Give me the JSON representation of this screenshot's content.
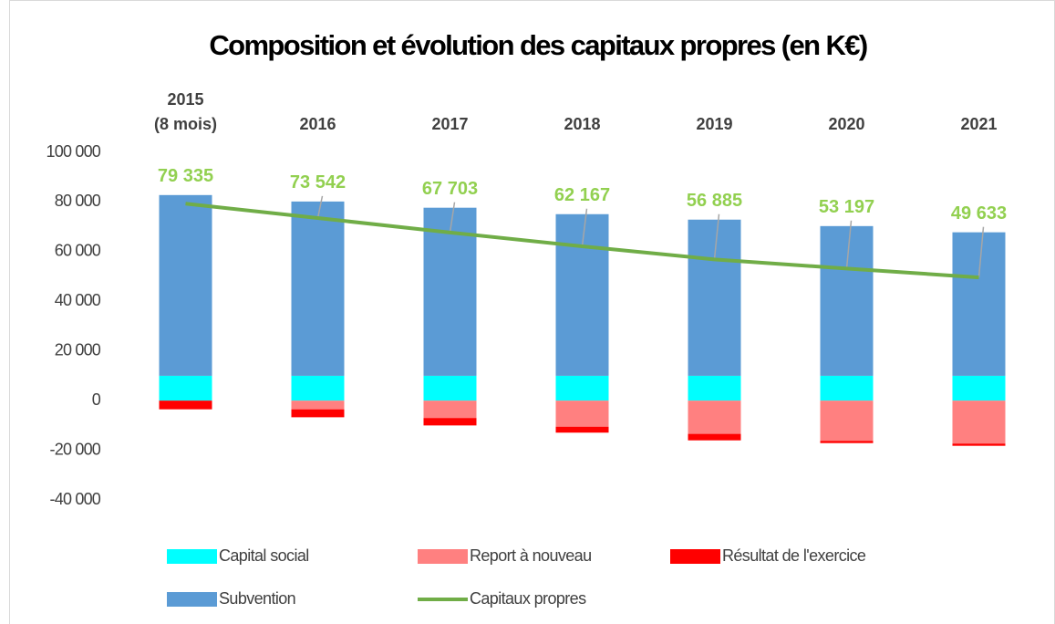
{
  "chart_data": {
    "type": "bar",
    "stacked": true,
    "title": "Composition et évolution des capitaux propres (en K€)",
    "categories": [
      "2015\n(8 mois)",
      "2016",
      "2017",
      "2018",
      "2019",
      "2020",
      "2021"
    ],
    "series": [
      {
        "name": "Capital social",
        "color": "#00ffff",
        "values": [
          10000,
          10000,
          10000,
          10000,
          10000,
          10000,
          10000
        ]
      },
      {
        "name": "Report à nouveau",
        "color": "#ff8080",
        "values": [
          0,
          -3500,
          -7000,
          -10500,
          -13400,
          -16200,
          -17300
        ]
      },
      {
        "name": "Résultat de l'exercice",
        "color": "#ff0000",
        "values": [
          -3500,
          -3200,
          -3000,
          -2400,
          -2600,
          -900,
          -900
        ]
      },
      {
        "name": "Subvention",
        "color": "#5b9bd5",
        "values": [
          72800,
          70200,
          67700,
          65100,
          62900,
          60300,
          57800
        ]
      },
      {
        "name": "Capitaux propres",
        "color": "#70ad47",
        "type": "line",
        "values": [
          79335,
          73542,
          67703,
          62167,
          56885,
          53197,
          49633
        ],
        "value_labels": [
          "79 335",
          "73 542",
          "67 703",
          "62 167",
          "56 885",
          "53 197",
          "49 633"
        ]
      }
    ],
    "ylim": [
      -40000,
      100000
    ],
    "yticks": [
      {
        "value": -40000,
        "label": "-40 000"
      },
      {
        "value": -20000,
        "label": "-20 000"
      },
      0,
      {
        "value": 20000,
        "label": "20 000"
      },
      {
        "value": 40000,
        "label": "40 000"
      },
      {
        "value": 60000,
        "label": "60 000"
      },
      {
        "value": 80000,
        "label": "80 000"
      },
      {
        "value": 100000,
        "label": "100 000"
      }
    ],
    "grid": false,
    "legend": "bottom"
  }
}
